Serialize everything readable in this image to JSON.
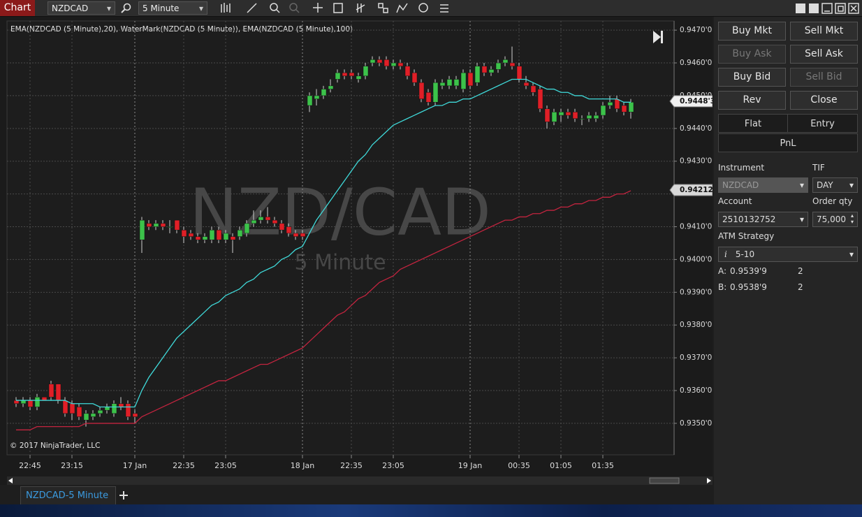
{
  "toolbar": {
    "title": "Chart",
    "instrument": "NZDCAD",
    "interval": "5 Minute"
  },
  "chart_data": {
    "type": "candlestick",
    "indicators": "EMA(NZDCAD (5 Minute),20), WaterMark(NZDCAD (5 Minute)), EMA(NZDCAD (5 Minute),100)",
    "watermark_instrument": "NZD/CAD",
    "watermark_interval": "5 Minute",
    "copyright": "© 2017 NinjaTrader, LLC",
    "up_color": "#3cc24a",
    "down_color": "#e01f27",
    "grid": true,
    "categories": [
      null,
      null,
      "22:45",
      null,
      null,
      null,
      null,
      null,
      "23:15",
      null,
      null,
      null,
      null,
      null,
      null,
      null,
      null,
      "17 Jan",
      null,
      null,
      null,
      null,
      null,
      null,
      "22:35",
      null,
      null,
      null,
      null,
      null,
      "23:05",
      null,
      null,
      null,
      null,
      null,
      null,
      null,
      null,
      null,
      null,
      "18 Jan",
      null,
      null,
      null,
      null,
      null,
      null,
      "22:35",
      null,
      null,
      null,
      null,
      null,
      "23:05",
      null,
      null,
      null,
      null,
      null,
      null,
      null,
      null,
      null,
      null,
      "19 Jan",
      null,
      null,
      null,
      null,
      null,
      null,
      "00:35",
      null,
      null,
      null,
      null,
      null,
      "01:05",
      null,
      null,
      null,
      null,
      null,
      "01:35",
      null,
      null,
      null,
      null
    ],
    "open": [
      0.9357,
      0.9356,
      0.9357,
      0.9355,
      0.9358,
      0.9362,
      0.9362,
      0.9357,
      0.9356,
      0.9355,
      0.9351,
      0.9352,
      0.9353,
      0.9354,
      0.9353,
      0.9356,
      0.9356,
      0.9353,
      0.9406,
      0.9411,
      0.941,
      0.9411,
      0.941,
      0.9412,
      0.9409,
      0.9408,
      0.9407,
      0.9406,
      0.9406,
      0.9409,
      0.9406,
      0.9407,
      0.9407,
      0.9408,
      0.9411,
      0.9412,
      0.9413,
      0.9412,
      0.9411,
      0.941,
      0.9408,
      0.9408,
      0.9447,
      0.9449,
      0.945,
      0.9452,
      0.9455,
      0.9457,
      0.9457,
      0.9455,
      0.9456,
      0.946,
      0.9461,
      0.9461,
      0.9459,
      0.946,
      0.9459,
      0.9457,
      0.9454,
      0.9451,
      0.9448,
      0.9453,
      0.9453,
      0.9453,
      0.9452,
      0.9457,
      0.9454,
      0.9459,
      0.9457,
      0.9458,
      0.946,
      0.946,
      0.9459,
      0.9454,
      0.9453,
      0.9452,
      0.9446,
      0.9442,
      0.9444,
      0.9445,
      0.9445,
      0.9443,
      0.9443,
      0.9443,
      0.9444,
      0.9447,
      0.9449,
      0.9447,
      0.9445
    ],
    "high": [
      0.9358,
      0.9358,
      0.9358,
      0.9359,
      0.9358,
      0.9363,
      0.9362,
      0.9358,
      0.9357,
      0.9356,
      0.9354,
      0.9354,
      0.9355,
      0.9356,
      0.9357,
      0.9358,
      0.9357,
      0.9354,
      0.9413,
      0.9412,
      0.9412,
      0.9412,
      0.9412,
      0.9412,
      0.941,
      0.9409,
      0.9408,
      0.9408,
      0.941,
      0.941,
      0.9409,
      0.9408,
      0.941,
      0.9412,
      0.9415,
      0.9415,
      0.9416,
      0.9413,
      0.9412,
      0.9411,
      0.9409,
      0.9409,
      0.9451,
      0.9452,
      0.9453,
      0.9455,
      0.9458,
      0.9458,
      0.9458,
      0.9457,
      0.946,
      0.9462,
      0.9462,
      0.9462,
      0.9461,
      0.9461,
      0.946,
      0.9458,
      0.9455,
      0.9452,
      0.9455,
      0.9455,
      0.9456,
      0.9456,
      0.9458,
      0.9458,
      0.946,
      0.946,
      0.9459,
      0.9461,
      0.9462,
      0.9465,
      0.946,
      0.9456,
      0.9454,
      0.9453,
      0.9447,
      0.9446,
      0.9446,
      0.9446,
      0.9446,
      0.9444,
      0.9445,
      0.9445,
      0.9448,
      0.945,
      0.945,
      0.9448,
      0.9449
    ],
    "low": [
      0.9355,
      0.9355,
      0.9354,
      0.9354,
      0.9357,
      0.9357,
      0.9356,
      0.9352,
      0.9351,
      0.9351,
      0.9349,
      0.9351,
      0.9352,
      0.9353,
      0.9352,
      0.9354,
      0.9351,
      0.935,
      0.9402,
      0.9409,
      0.9409,
      0.9409,
      0.9408,
      0.9408,
      0.9405,
      0.9406,
      0.9405,
      0.9405,
      0.9405,
      0.9405,
      0.9405,
      0.9402,
      0.9406,
      0.9407,
      0.941,
      0.9411,
      0.9411,
      0.941,
      0.9408,
      0.9407,
      0.9406,
      0.9406,
      0.9445,
      0.9447,
      0.9449,
      0.9451,
      0.9454,
      0.9455,
      0.9455,
      0.9454,
      0.9455,
      0.9459,
      0.9459,
      0.9458,
      0.9458,
      0.9458,
      0.9455,
      0.9453,
      0.9448,
      0.9447,
      0.9447,
      0.9452,
      0.9452,
      0.9452,
      0.9451,
      0.9452,
      0.9453,
      0.9456,
      0.9456,
      0.9457,
      0.9459,
      0.9458,
      0.9454,
      0.9452,
      0.945,
      0.9445,
      0.944,
      0.9441,
      0.9442,
      0.9443,
      0.9442,
      0.9441,
      0.9442,
      0.9442,
      0.9443,
      0.9446,
      0.9445,
      0.9444,
      0.9443
    ],
    "close": [
      0.9356,
      0.9357,
      0.9355,
      0.9358,
      0.9357,
      0.9358,
      0.9357,
      0.9353,
      0.9353,
      0.9352,
      0.9353,
      0.9353,
      0.9354,
      0.9355,
      0.9356,
      0.9355,
      0.9352,
      0.9352,
      0.9412,
      0.941,
      0.9411,
      0.941,
      0.941,
      0.9409,
      0.9407,
      0.9407,
      0.9406,
      0.9407,
      0.9409,
      0.9406,
      0.9408,
      0.9406,
      0.9409,
      0.9411,
      0.9412,
      0.9413,
      0.9412,
      0.9411,
      0.9409,
      0.9408,
      0.9407,
      0.9407,
      0.945,
      0.945,
      0.9452,
      0.9453,
      0.9457,
      0.9456,
      0.9456,
      0.9456,
      0.9459,
      0.9461,
      0.946,
      0.9459,
      0.946,
      0.9459,
      0.9456,
      0.9454,
      0.9449,
      0.9448,
      0.9454,
      0.9454,
      0.9455,
      0.9455,
      0.9457,
      0.9453,
      0.9459,
      0.9457,
      0.9458,
      0.946,
      0.9461,
      0.9459,
      0.9455,
      0.9453,
      0.9451,
      0.9446,
      0.9442,
      0.9445,
      0.9445,
      0.9444,
      0.9443,
      0.9443,
      0.9444,
      0.9444,
      0.9447,
      0.9448,
      0.9446,
      0.9445,
      0.9448
    ],
    "series": [
      {
        "color": "#3fd9d9",
        "values": [
          0.9357,
          0.9357,
          0.9357,
          0.9357,
          0.9357,
          0.9357,
          0.9357,
          0.9357,
          0.9356,
          0.9356,
          0.9356,
          0.9356,
          0.9355,
          0.9355,
          0.9355,
          0.9355,
          0.9355,
          0.9355,
          0.936,
          0.9364,
          0.9367,
          0.937,
          0.9373,
          0.9376,
          0.9378,
          0.938,
          0.9382,
          0.9384,
          0.9386,
          0.9387,
          0.9389,
          0.939,
          0.9391,
          0.9393,
          0.9394,
          0.9396,
          0.9397,
          0.9398,
          0.94,
          0.9401,
          0.9403,
          0.9404,
          0.9408,
          0.9412,
          0.9415,
          0.9418,
          0.9421,
          0.9424,
          0.9427,
          0.943,
          0.9432,
          0.9435,
          0.9437,
          0.9439,
          0.9441,
          0.9442,
          0.9443,
          0.9444,
          0.9445,
          0.9446,
          0.9447,
          0.9447,
          0.9448,
          0.9448,
          0.9449,
          0.9449,
          0.945,
          0.9451,
          0.9452,
          0.9453,
          0.9454,
          0.9455,
          0.9455,
          0.9455,
          0.9454,
          0.9453,
          0.9452,
          0.9452,
          0.9451,
          0.9451,
          0.945,
          0.945,
          0.9449,
          0.9449,
          0.9449,
          0.9449,
          0.9449,
          0.9448,
          0.9448
        ]
      },
      {
        "color": "#c3243f",
        "values": [
          0.9348,
          0.9348,
          0.9348,
          0.9349,
          0.9349,
          0.9349,
          0.9349,
          0.9349,
          0.9349,
          0.9349,
          0.935,
          0.935,
          0.935,
          0.935,
          0.935,
          0.935,
          0.935,
          0.935,
          0.9352,
          0.9353,
          0.9354,
          0.9355,
          0.9356,
          0.9357,
          0.9358,
          0.9359,
          0.936,
          0.9361,
          0.9362,
          0.9363,
          0.9363,
          0.9364,
          0.9365,
          0.9366,
          0.9367,
          0.9368,
          0.9368,
          0.9369,
          0.937,
          0.9371,
          0.9372,
          0.9373,
          0.9375,
          0.9377,
          0.9379,
          0.9381,
          0.9383,
          0.9384,
          0.9386,
          0.9388,
          0.9389,
          0.9391,
          0.9393,
          0.9394,
          0.9395,
          0.9397,
          0.9398,
          0.9399,
          0.94,
          0.9401,
          0.9402,
          0.9403,
          0.9404,
          0.9405,
          0.9406,
          0.9407,
          0.9408,
          0.9409,
          0.941,
          0.9411,
          0.9412,
          0.9412,
          0.9413,
          0.9413,
          0.9414,
          0.9414,
          0.9415,
          0.9415,
          0.9416,
          0.9416,
          0.9417,
          0.9417,
          0.9418,
          0.9418,
          0.9419,
          0.9419,
          0.942,
          0.942,
          0.9421
        ]
      }
    ],
    "ylim": [
      0.93406,
      0.94728
    ],
    "yticks": [
      {
        "value": 0.935,
        "label": "0.9350'0"
      },
      {
        "value": 0.936,
        "label": "0.9360'0"
      },
      {
        "value": 0.937,
        "label": "0.9370'0"
      },
      {
        "value": 0.938,
        "label": "0.9380'0"
      },
      {
        "value": 0.939,
        "label": "0.9390'0"
      },
      {
        "value": 0.94,
        "label": "0.9400'0"
      },
      {
        "value": 0.941,
        "label": "0.9410'0"
      },
      {
        "value": 0.942,
        "label": "0.9420'0"
      },
      {
        "value": 0.943,
        "label": "0.9430'0"
      },
      {
        "value": 0.944,
        "label": "0.9440'0"
      },
      {
        "value": 0.945,
        "label": "0.9450'0"
      },
      {
        "value": 0.946,
        "label": "0.9460'0"
      },
      {
        "value": 0.947,
        "label": "0.9470'0"
      }
    ],
    "markers": [
      {
        "value": 0.94483,
        "label": "0.9448'3"
      },
      0.94212
    ]
  },
  "order_panel": {
    "buttons": [
      "Buy Mkt",
      "Sell Mkt",
      "Buy Ask",
      "Sell Ask",
      "Buy Bid",
      "Sell Bid",
      "Rev",
      "Close"
    ],
    "flat": "Flat",
    "entry": "Entry",
    "pnl": "PnL",
    "instrument_label": "Instrument",
    "instrument": "NZDCAD",
    "tif_label": "TIF",
    "tif": "DAY",
    "account_label": "Account",
    "account": "2510132752",
    "qty_label": "Order qty",
    "qty": "75,000",
    "atm_label": "ATM Strategy",
    "atm_info": "i",
    "atm": "5-10",
    "quotes": [
      {
        "side": "A:",
        "price": "0.9539'9",
        "size": 2
      },
      {
        "side": "B:",
        "price": "0.9538'9",
        "size": 2
      }
    ]
  },
  "tab": "NZDCAD-5 Minute"
}
